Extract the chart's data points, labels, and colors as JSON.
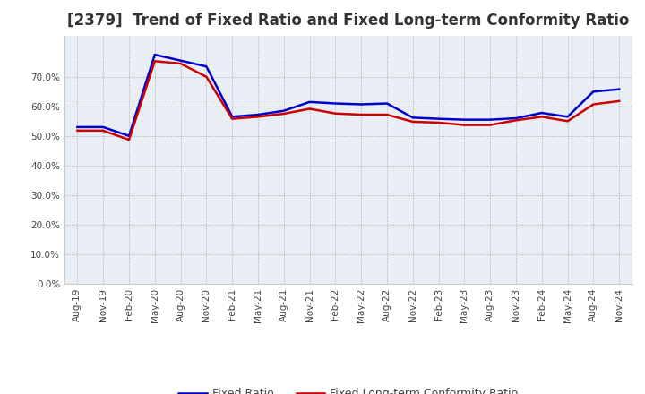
{
  "title": "[2379]  Trend of Fixed Ratio and Fixed Long-term Conformity Ratio",
  "title_fontsize": 12,
  "ylim": [
    0.0,
    0.84
  ],
  "yticks": [
    0.0,
    0.1,
    0.2,
    0.3,
    0.4,
    0.5,
    0.6,
    0.7
  ],
  "legend_labels": [
    "Fixed Ratio",
    "Fixed Long-term Conformity Ratio"
  ],
  "line_colors": [
    "#0000cc",
    "#cc0000"
  ],
  "x_labels": [
    "Aug-19",
    "Nov-19",
    "Feb-20",
    "May-20",
    "Aug-20",
    "Nov-20",
    "Feb-21",
    "May-21",
    "Aug-21",
    "Nov-21",
    "Feb-22",
    "May-22",
    "Aug-22",
    "Nov-22",
    "Feb-23",
    "May-23",
    "Aug-23",
    "Nov-23",
    "Feb-24",
    "May-24",
    "Aug-24",
    "Nov-24"
  ],
  "fixed_ratio": [
    0.53,
    0.53,
    0.5,
    0.775,
    0.755,
    0.735,
    0.565,
    0.572,
    0.585,
    0.615,
    0.61,
    0.607,
    0.61,
    0.562,
    0.558,
    0.555,
    0.555,
    0.56,
    0.578,
    0.565,
    0.65,
    0.658
  ],
  "fixed_longterm": [
    0.518,
    0.518,
    0.487,
    0.753,
    0.745,
    0.7,
    0.558,
    0.565,
    0.575,
    0.592,
    0.576,
    0.572,
    0.572,
    0.548,
    0.545,
    0.537,
    0.537,
    0.553,
    0.565,
    0.55,
    0.607,
    0.618
  ],
  "background_color": "#ffffff",
  "grid_color": "#aaaaaa",
  "plot_bg_color": "#e8eef4"
}
